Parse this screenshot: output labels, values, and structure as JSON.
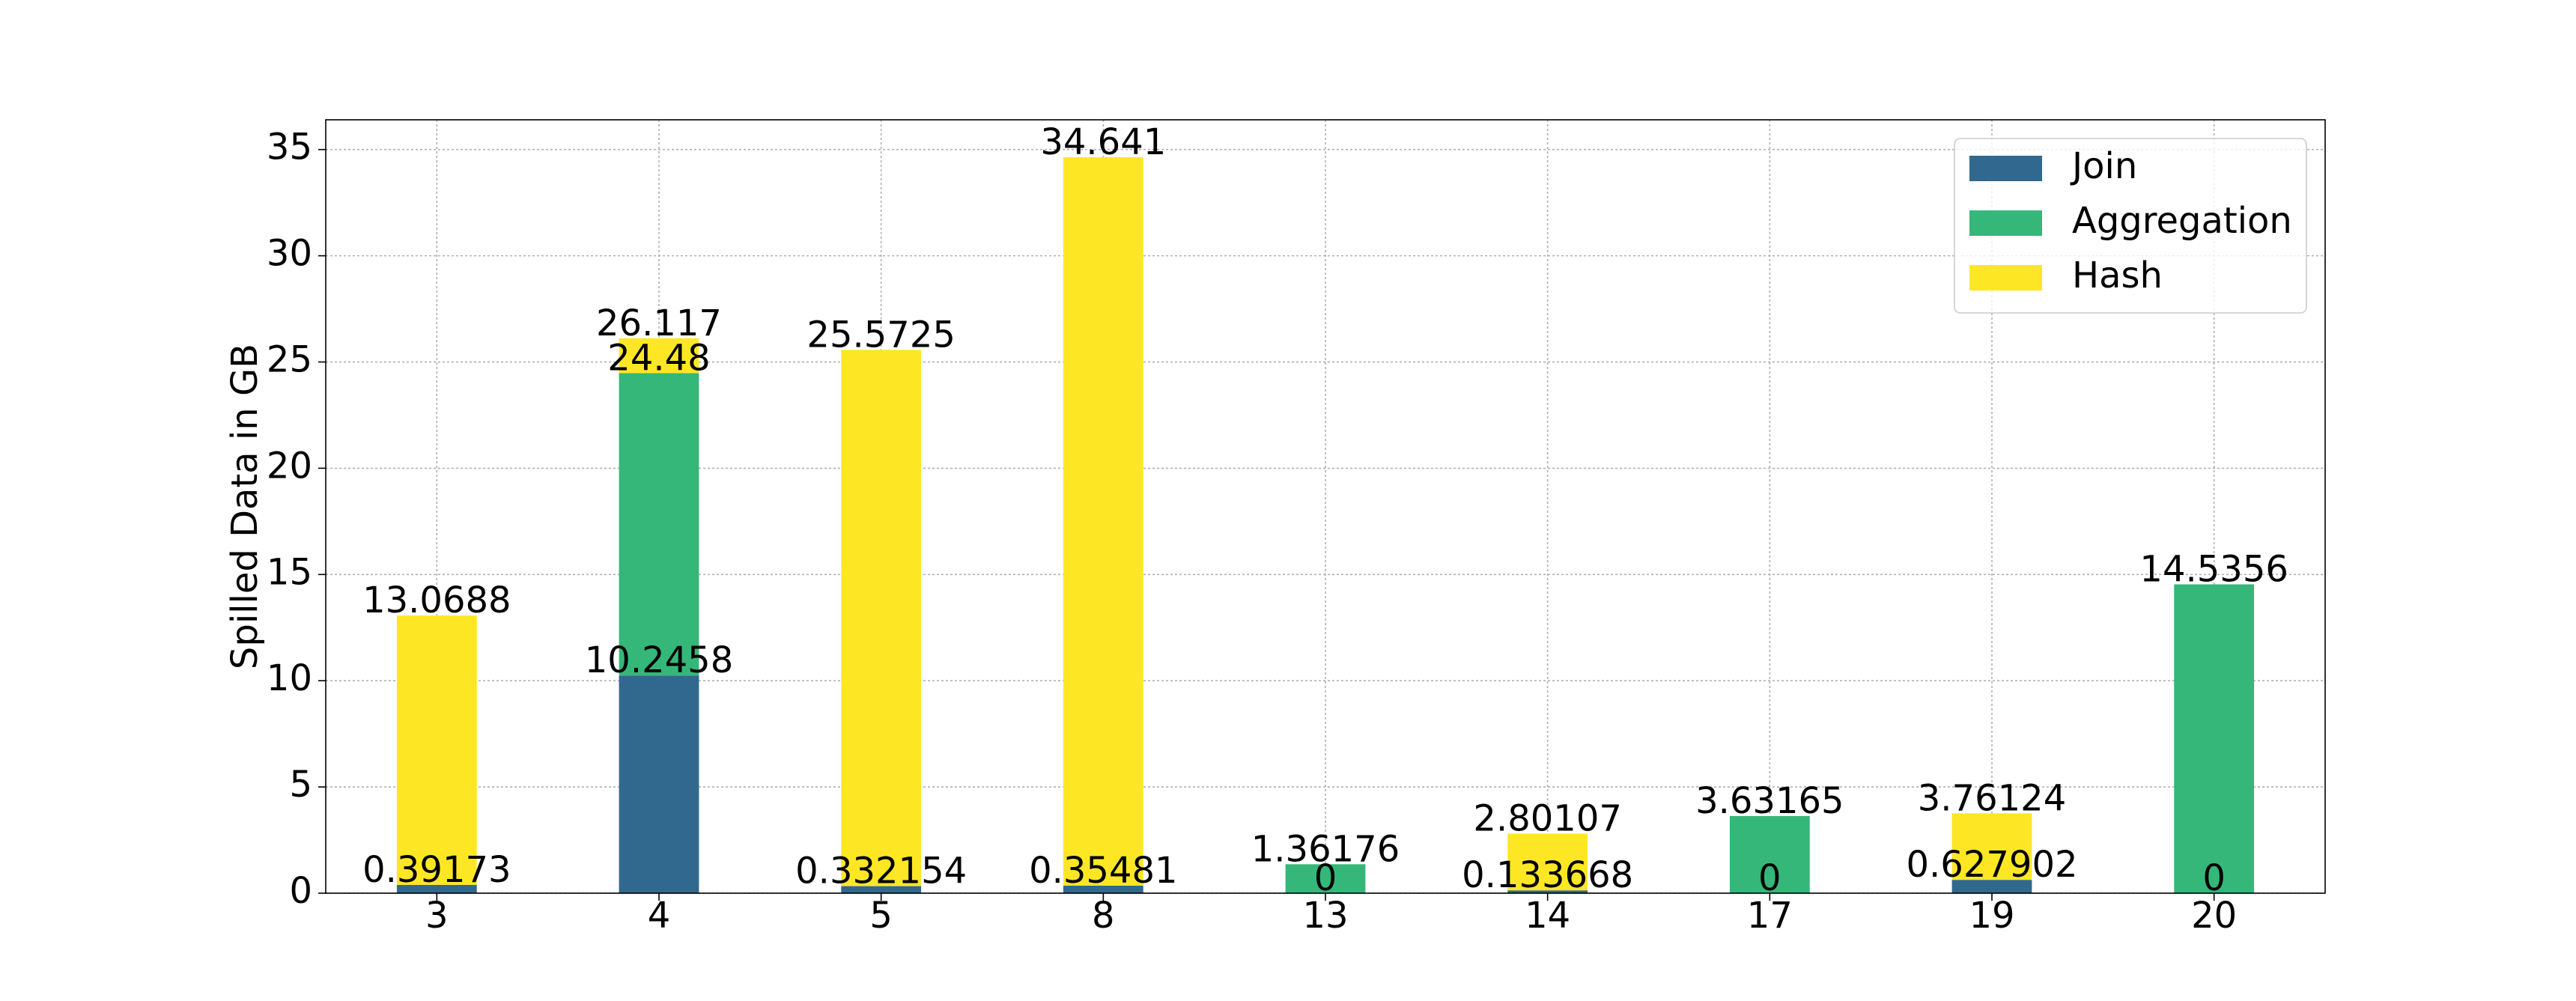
{
  "chart_data": {
    "type": "bar",
    "stacked": true,
    "title": "",
    "xlabel": "",
    "ylabel": "Spilled Data in GB",
    "ylim": [
      0,
      36.4
    ],
    "yticks": [
      0,
      5,
      10,
      15,
      20,
      25,
      30,
      35
    ],
    "grid": true,
    "legend_position": "top-right",
    "categories": [
      "3",
      "4",
      "5",
      "8",
      "13",
      "14",
      "17",
      "19",
      "20"
    ],
    "series": [
      {
        "name": "Join",
        "color": "#31688e",
        "values": [
          0.39173,
          10.2458,
          0.332154,
          0.35481,
          0,
          0.133668,
          0,
          0.627902,
          0
        ]
      },
      {
        "name": "Aggregation",
        "color": "#35b779",
        "values": [
          0,
          14.2342,
          0,
          0,
          1.36176,
          0,
          3.63165,
          0,
          14.5356
        ]
      },
      {
        "name": "Hash",
        "color": "#fde725",
        "values": [
          12.67707,
          1.637,
          25.240346,
          34.28619,
          0,
          2.667402,
          0,
          3.133338,
          0
        ]
      }
    ],
    "data_labels": [
      {
        "category": "3",
        "value": 0.39173,
        "text": "0.39173"
      },
      {
        "category": "3",
        "value": 13.0688,
        "text": "13.0688"
      },
      {
        "category": "4",
        "value": 10.2458,
        "text": "10.2458"
      },
      {
        "category": "4",
        "value": 24.48,
        "text": "24.48"
      },
      {
        "category": "4",
        "value": 26.117,
        "text": "26.117"
      },
      {
        "category": "5",
        "value": 0.332154,
        "text": "0.332154"
      },
      {
        "category": "5",
        "value": 25.5725,
        "text": "25.5725"
      },
      {
        "category": "8",
        "value": 0.35481,
        "text": "0.35481"
      },
      {
        "category": "8",
        "value": 34.641,
        "text": "34.641"
      },
      {
        "category": "13",
        "value": 0,
        "text": "0"
      },
      {
        "category": "13",
        "value": 1.36176,
        "text": "1.36176"
      },
      {
        "category": "14",
        "value": 0.133668,
        "text": "0.133668"
      },
      {
        "category": "14",
        "value": 2.80107,
        "text": "2.80107"
      },
      {
        "category": "17",
        "value": 0,
        "text": "0"
      },
      {
        "category": "17",
        "value": 3.63165,
        "text": "3.63165"
      },
      {
        "category": "19",
        "value": 0.627902,
        "text": "0.627902"
      },
      {
        "category": "19",
        "value": 3.76124,
        "text": "3.76124"
      },
      {
        "category": "20",
        "value": 0,
        "text": "0"
      },
      {
        "category": "20",
        "value": 14.5356,
        "text": "14.5356"
      }
    ]
  }
}
